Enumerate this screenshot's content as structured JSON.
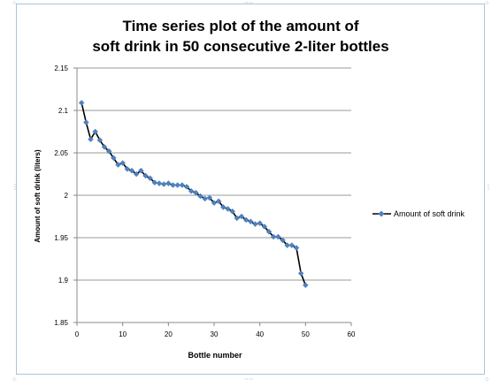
{
  "chart_data": {
    "type": "line",
    "title": [
      "Time series plot of the amount of",
      "soft drink in 50 consecutive 2-liter bottles"
    ],
    "xlabel": "Bottle number",
    "ylabel": "Amount of soft drink (liters)",
    "xlim": [
      0,
      60
    ],
    "ylim": [
      1.85,
      2.15
    ],
    "xticks": [
      "0",
      "10",
      "20",
      "30",
      "40",
      "50",
      "60"
    ],
    "yticks": [
      "1.85",
      "1.9",
      "1.95",
      "2",
      "2.05",
      "2.1",
      "2.15"
    ],
    "grid": "horizontal major gridlines",
    "legend_position": "right",
    "series": [
      {
        "name": "Amount of soft drink",
        "color": "#4f81bd",
        "line_color": "#000000",
        "x": [
          1,
          2,
          3,
          4,
          5,
          6,
          7,
          8,
          9,
          10,
          11,
          12,
          13,
          14,
          15,
          16,
          17,
          18,
          19,
          20,
          21,
          22,
          23,
          24,
          25,
          26,
          27,
          28,
          29,
          30,
          31,
          32,
          33,
          34,
          35,
          36,
          37,
          38,
          39,
          40,
          41,
          42,
          43,
          44,
          45,
          46,
          47,
          48,
          49,
          50
        ],
        "values": [
          2.109,
          2.086,
          2.066,
          2.075,
          2.065,
          2.057,
          2.052,
          2.044,
          2.036,
          2.038,
          2.031,
          2.029,
          2.025,
          2.029,
          2.023,
          2.02,
          2.015,
          2.014,
          2.013,
          2.014,
          2.012,
          2.012,
          2.012,
          2.01,
          2.005,
          2.003,
          1.999,
          1.996,
          1.997,
          1.991,
          1.993,
          1.986,
          1.984,
          1.981,
          1.973,
          1.975,
          1.971,
          1.969,
          1.966,
          1.967,
          1.963,
          1.957,
          1.951,
          1.951,
          1.947,
          1.941,
          1.941,
          1.938,
          1.908,
          1.894
        ]
      }
    ]
  }
}
